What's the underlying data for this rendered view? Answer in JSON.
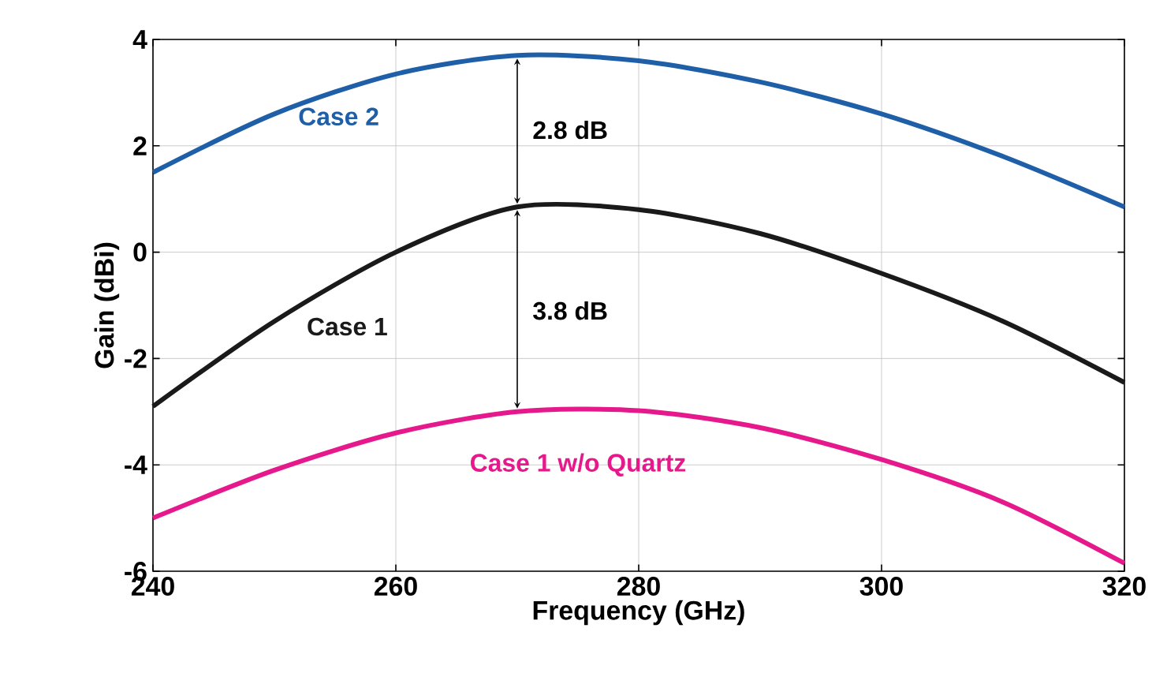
{
  "chart_data": {
    "type": "line",
    "xlabel": "Frequency (GHz)",
    "ylabel": "Gain (dBi)",
    "xlim": [
      240,
      320
    ],
    "xticks": [
      240,
      260,
      280,
      300,
      320
    ],
    "ylim": [
      -6,
      4
    ],
    "yticks": [
      -6,
      -4,
      -2,
      0,
      2,
      4
    ],
    "grid": true,
    "legend": false,
    "line_style": "solid",
    "marker": "none",
    "series": [
      {
        "name": "Case 2",
        "color": "#1f5fa8",
        "x": [
          240,
          250,
          260,
          270,
          280,
          290,
          300,
          310,
          320
        ],
        "values": [
          1.5,
          2.6,
          3.35,
          3.7,
          3.6,
          3.2,
          2.6,
          1.8,
          0.85
        ]
      },
      {
        "name": "Case 1",
        "color": "#1a1a1a",
        "x": [
          240,
          250,
          260,
          270,
          280,
          290,
          300,
          310,
          320
        ],
        "values": [
          -2.9,
          -1.3,
          0.0,
          0.85,
          0.8,
          0.35,
          -0.4,
          -1.3,
          -2.45
        ]
      },
      {
        "name": "Case 1 w/o Quartz",
        "color": "#e6198c",
        "x": [
          240,
          250,
          260,
          270,
          280,
          290,
          300,
          310,
          320
        ],
        "values": [
          -5.0,
          -4.1,
          -3.4,
          -3.0,
          -2.98,
          -3.3,
          -3.9,
          -4.7,
          -5.85
        ]
      }
    ],
    "annotations": [
      "2.8 dB",
      "3.8 dB"
    ]
  }
}
